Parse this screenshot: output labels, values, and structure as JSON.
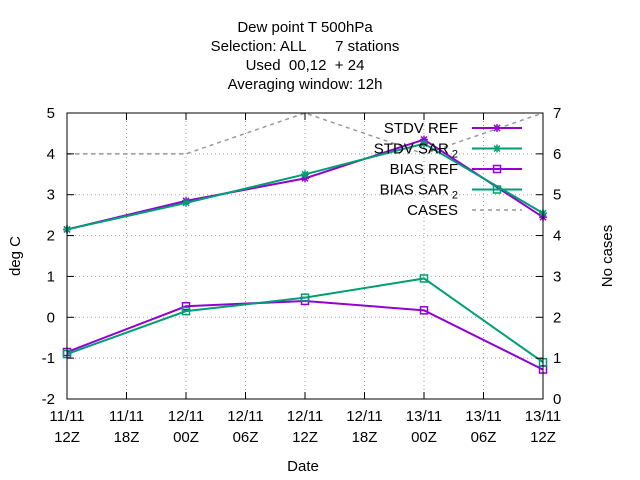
{
  "chart_data": {
    "type": "line",
    "title_lines": [
      "Dew point T 500hPa",
      "Selection: ALL       7 stations",
      "Used  00,12  + 24",
      "Averaging window: 12h"
    ],
    "xlabel": "Date",
    "ylabel": "deg C",
    "y2label": "No cases",
    "x_ticks": [
      {
        "date": "11/11",
        "hour": "12Z"
      },
      {
        "date": "11/11",
        "hour": "18Z"
      },
      {
        "date": "12/11",
        "hour": "00Z"
      },
      {
        "date": "12/11",
        "hour": "06Z"
      },
      {
        "date": "12/11",
        "hour": "12Z"
      },
      {
        "date": "12/11",
        "hour": "18Z"
      },
      {
        "date": "13/11",
        "hour": "00Z"
      },
      {
        "date": "13/11",
        "hour": "06Z"
      },
      {
        "date": "13/11",
        "hour": "12Z"
      }
    ],
    "ylim": [
      -2,
      5
    ],
    "y_ticks": [
      "-2",
      "-1",
      "0",
      "1",
      "2",
      "3",
      "4",
      "5"
    ],
    "y2lim": [
      0,
      7
    ],
    "y2_ticks": [
      "0",
      "1",
      "2",
      "3",
      "4",
      "5",
      "6",
      "7"
    ],
    "grid": true,
    "legend_position": "top-right",
    "x": [
      "11/11 12Z",
      "12/11 00Z",
      "12/11 12Z",
      "13/11 00Z",
      "13/11 12Z"
    ],
    "series": [
      {
        "label": "STDV REF",
        "sub": "",
        "color": "#9400d3",
        "marker": "star",
        "axis": "y",
        "values": [
          2.15,
          2.85,
          3.4,
          4.35,
          2.45
        ]
      },
      {
        "label": "STDV SAR",
        "sub": "2",
        "color": "#009e73",
        "marker": "star",
        "axis": "y",
        "values": [
          2.15,
          2.8,
          3.5,
          4.25,
          2.55
        ]
      },
      {
        "label": "BIAS REF",
        "sub": "",
        "color": "#9400d3",
        "marker": "square",
        "axis": "y",
        "values": [
          -0.85,
          0.27,
          0.4,
          0.17,
          -1.28
        ]
      },
      {
        "label": "BIAS SAR",
        "sub": "2",
        "color": "#009e73",
        "marker": "square",
        "axis": "y",
        "values": [
          -0.9,
          0.15,
          0.48,
          0.95,
          -1.1
        ]
      },
      {
        "label": "CASES",
        "sub": "",
        "color": "#999999",
        "marker": "none",
        "dashed": true,
        "axis": "y2",
        "values": [
          6,
          6,
          7,
          6,
          7
        ]
      }
    ]
  }
}
